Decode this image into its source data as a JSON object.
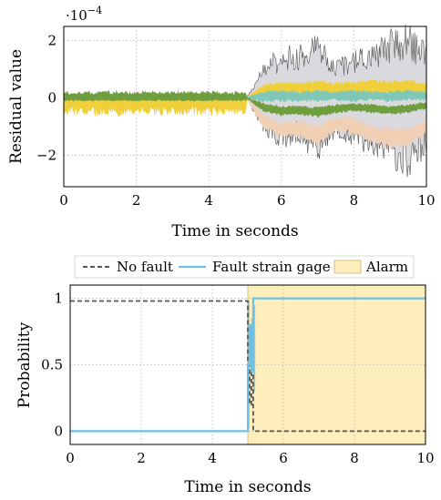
{
  "chart_data": [
    {
      "type": "area",
      "ylabel": "Residual value",
      "xlabel": "Time in seconds",
      "scale_label": "·10",
      "scale_exponent": "−4",
      "xlim": [
        0,
        10
      ],
      "ylim": [
        -3.1,
        2.5
      ],
      "x_ticks": [
        "0",
        "2",
        "4",
        "6",
        "8",
        "10"
      ],
      "y_ticks": [
        "−2",
        "0",
        "2"
      ],
      "x_tick_values": [
        0,
        2,
        4,
        6,
        8,
        10
      ],
      "y_tick_values": [
        -2,
        0,
        2
      ],
      "grid": true,
      "fault_onset": 5.05,
      "series": [
        {
          "color": "#d9d9de",
          "edge": "#555555",
          "pre_band": [
            -0.14,
            0.08
          ],
          "post_envelope": [
            [
              5.05,
              -0.05,
              0.02
            ],
            [
              5.5,
              -0.9,
              0.9
            ],
            [
              6,
              -1.4,
              1.4
            ],
            [
              6.5,
              -1.2,
              1.4
            ],
            [
              7,
              -1.7,
              1.7
            ],
            [
              7.5,
              -1.0,
              1.0
            ],
            [
              8,
              -1.3,
              1.3
            ],
            [
              8.5,
              -1.5,
              1.5
            ],
            [
              9,
              -1.8,
              1.8
            ],
            [
              9.5,
              -2.1,
              2.0
            ],
            [
              10,
              -1.5,
              1.4
            ]
          ]
        },
        {
          "color": "#f0cfb4",
          "pre_band": [
            -0.08,
            0.06
          ],
          "post_envelope": [
            [
              5.05,
              -0.05,
              0.02
            ],
            [
              5.5,
              -1.0,
              -0.6
            ],
            [
              6,
              -1.3,
              -0.9
            ],
            [
              6.5,
              -1.3,
              -0.8
            ],
            [
              7,
              -1.6,
              -1.0
            ],
            [
              7.5,
              -1.1,
              -0.7
            ],
            [
              8,
              -1.2,
              -0.7
            ],
            [
              8.5,
              -1.5,
              -1.0
            ],
            [
              9,
              -1.7,
              -1.1
            ],
            [
              9.5,
              -1.6,
              -1.1
            ],
            [
              10,
              -1.2,
              -0.8
            ]
          ]
        },
        {
          "color": "#f0d03a",
          "pre_band": [
            -0.55,
            0.05
          ],
          "post_envelope": [
            [
              5.05,
              -0.05,
              0.02
            ],
            [
              5.5,
              0.1,
              0.45
            ],
            [
              6,
              0.2,
              0.55
            ],
            [
              6.5,
              0.2,
              0.5
            ],
            [
              7,
              0.15,
              0.6
            ],
            [
              7.5,
              0.1,
              0.5
            ],
            [
              8,
              0.15,
              0.55
            ],
            [
              8.5,
              0.2,
              0.6
            ],
            [
              9,
              0.15,
              0.55
            ],
            [
              9.5,
              0.2,
              0.6
            ],
            [
              10,
              0.15,
              0.5
            ]
          ]
        },
        {
          "color": "#7fc8b8",
          "pre_band": [
            -0.05,
            0.05
          ],
          "post_envelope": [
            [
              5.05,
              -0.02,
              0.02
            ],
            [
              5.5,
              -0.1,
              0.2
            ],
            [
              6,
              -0.1,
              0.25
            ],
            [
              6.5,
              -0.1,
              0.2
            ],
            [
              7,
              -0.1,
              0.25
            ],
            [
              7.5,
              -0.05,
              0.2
            ],
            [
              8,
              -0.1,
              0.25
            ],
            [
              8.5,
              -0.05,
              0.2
            ],
            [
              9,
              -0.1,
              0.2
            ],
            [
              9.5,
              -0.05,
              0.25
            ],
            [
              10,
              -0.05,
              0.2
            ]
          ]
        },
        {
          "color": "#6e9e3e",
          "pre_band": [
            -0.1,
            0.22
          ],
          "post_envelope": [
            [
              5.05,
              -0.02,
              0.02
            ],
            [
              5.5,
              -0.45,
              -0.2
            ],
            [
              6,
              -0.6,
              -0.3
            ],
            [
              6.5,
              -0.55,
              -0.3
            ],
            [
              7,
              -0.65,
              -0.35
            ],
            [
              7.5,
              -0.5,
              -0.25
            ],
            [
              8,
              -0.45,
              -0.2
            ],
            [
              8.5,
              -0.5,
              -0.25
            ],
            [
              9,
              -0.55,
              -0.3
            ],
            [
              9.5,
              -0.5,
              -0.25
            ],
            [
              10,
              -0.35,
              -0.15
            ]
          ]
        }
      ]
    },
    {
      "type": "line",
      "ylabel": "Probability",
      "xlabel": "Time in seconds",
      "xlim": [
        0,
        10
      ],
      "ylim": [
        -0.1,
        1.1
      ],
      "x_ticks": [
        "0",
        "2",
        "4",
        "6",
        "8",
        "10"
      ],
      "y_ticks": [
        "0",
        "0.5",
        "1"
      ],
      "x_tick_values": [
        0,
        2,
        4,
        6,
        8,
        10
      ],
      "y_tick_values": [
        0,
        0.5,
        1
      ],
      "grid": true,
      "legend_placement": "top",
      "alarm_range": [
        5.0,
        10
      ],
      "series": [
        {
          "name": "No fault",
          "style": "dashed",
          "color": "#555555",
          "x": [
            0,
            5.0,
            5.0,
            5.05,
            5.05,
            5.1,
            5.1,
            5.15,
            5.15,
            10
          ],
          "y": [
            0.98,
            0.98,
            0.5,
            0.5,
            0.2,
            0.2,
            0.55,
            0.55,
            0,
            0
          ]
        },
        {
          "name": "Fault strain gage 1",
          "style": "solid",
          "color": "#6ec1e4",
          "x": [
            0,
            5.0,
            5.0,
            5.05,
            5.05,
            5.1,
            5.1,
            5.15,
            5.15,
            10
          ],
          "y": [
            0,
            0,
            0.5,
            0.5,
            0.8,
            0.8,
            0.45,
            0.45,
            1,
            1
          ]
        }
      ],
      "alarm": {
        "name": "Alarm",
        "color": "#fdeebc",
        "edge": "#c8b36a"
      },
      "trace_overlay_color": "#88b8b0"
    }
  ]
}
